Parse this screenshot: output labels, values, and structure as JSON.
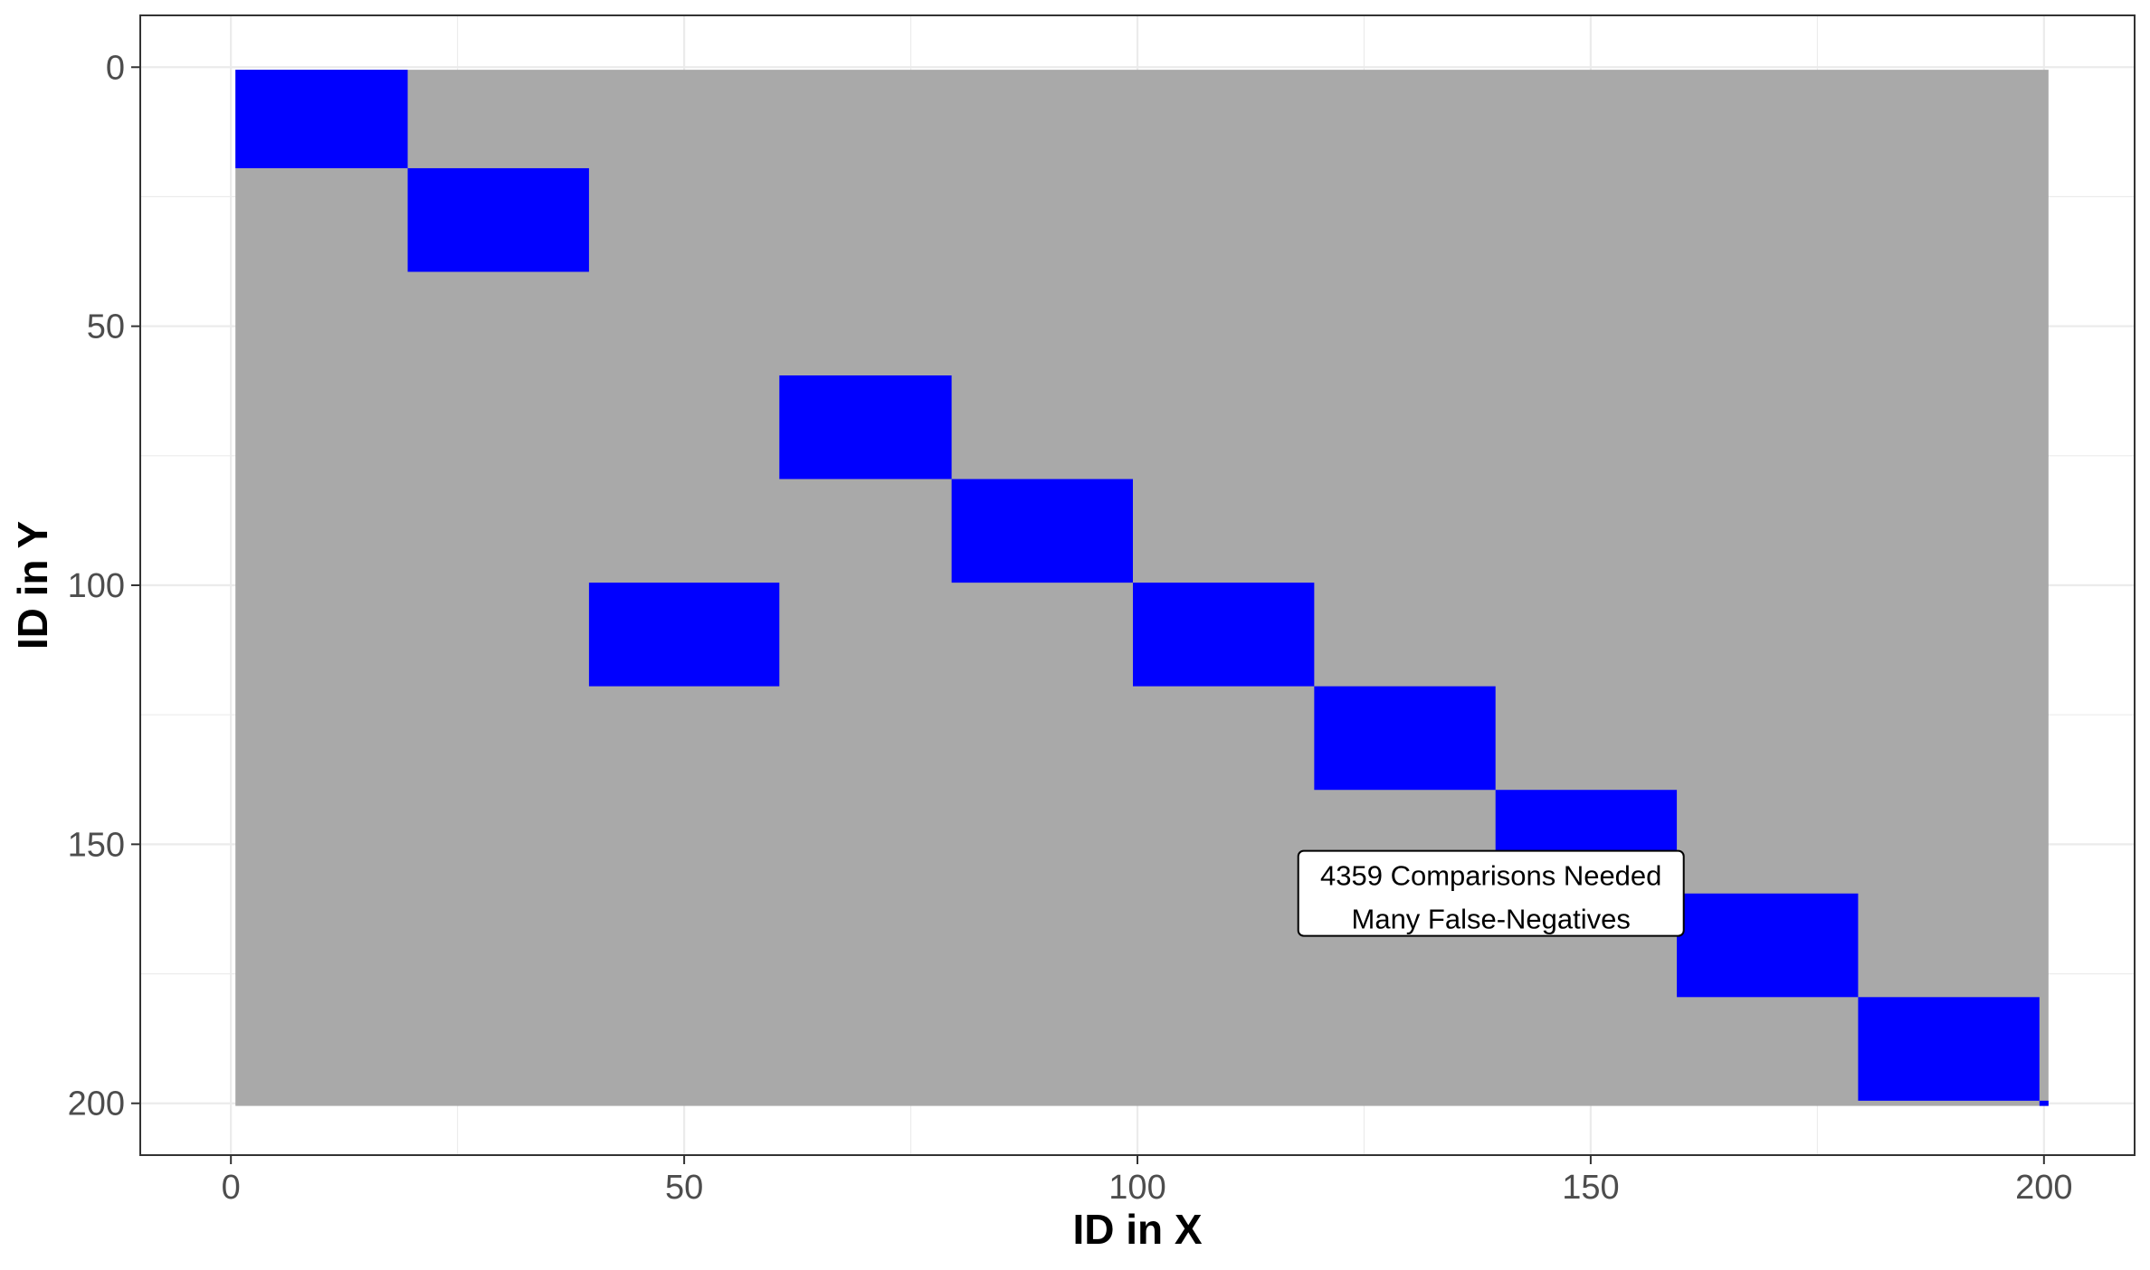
{
  "chart_data": {
    "type": "heatmap",
    "title": "",
    "xlabel": "ID in X",
    "ylabel": "ID in Y",
    "xlim": [
      -10,
      210
    ],
    "ylim": [
      -10,
      210
    ],
    "y_reversed": true,
    "grid": true,
    "legend": "none",
    "x_ticks": [
      0,
      50,
      100,
      150,
      200
    ],
    "y_ticks": [
      0,
      50,
      100,
      150,
      200
    ],
    "x_tick_labels": [
      "0",
      "50",
      "100",
      "150",
      "200"
    ],
    "y_tick_labels": [
      "0",
      "50",
      "100",
      "150",
      "200"
    ],
    "background_block": {
      "x": [
        0.5,
        200.5
      ],
      "y": [
        0.5,
        200.5
      ],
      "color": "#A9A9A9"
    },
    "compared_blocks": [
      {
        "x": [
          0.5,
          19.5
        ],
        "y": [
          0.5,
          19.5
        ]
      },
      {
        "x": [
          19.5,
          39.5
        ],
        "y": [
          19.5,
          39.5
        ]
      },
      {
        "x": [
          39.5,
          60.5
        ],
        "y": [
          99.5,
          119.5
        ]
      },
      {
        "x": [
          60.5,
          79.5
        ],
        "y": [
          59.5,
          79.5
        ]
      },
      {
        "x": [
          79.5,
          99.5
        ],
        "y": [
          79.5,
          99.5
        ]
      },
      {
        "x": [
          99.5,
          119.5
        ],
        "y": [
          99.5,
          119.5
        ]
      },
      {
        "x": [
          119.5,
          139.5
        ],
        "y": [
          119.5,
          139.5
        ]
      },
      {
        "x": [
          139.5,
          159.5
        ],
        "y": [
          139.5,
          159.5
        ]
      },
      {
        "x": [
          159.5,
          179.5
        ],
        "y": [
          159.5,
          179.5
        ]
      },
      {
        "x": [
          179.5,
          199.5
        ],
        "y": [
          179.5,
          199.5
        ]
      },
      {
        "x": [
          199.5,
          200.5
        ],
        "y": [
          199.5,
          200.5
        ]
      }
    ],
    "compared_color": "#0000FF",
    "annotation": {
      "lines": [
        "4359 Comparisons Needed",
        "Many False-Negatives"
      ],
      "x": 139,
      "y": 160
    }
  }
}
